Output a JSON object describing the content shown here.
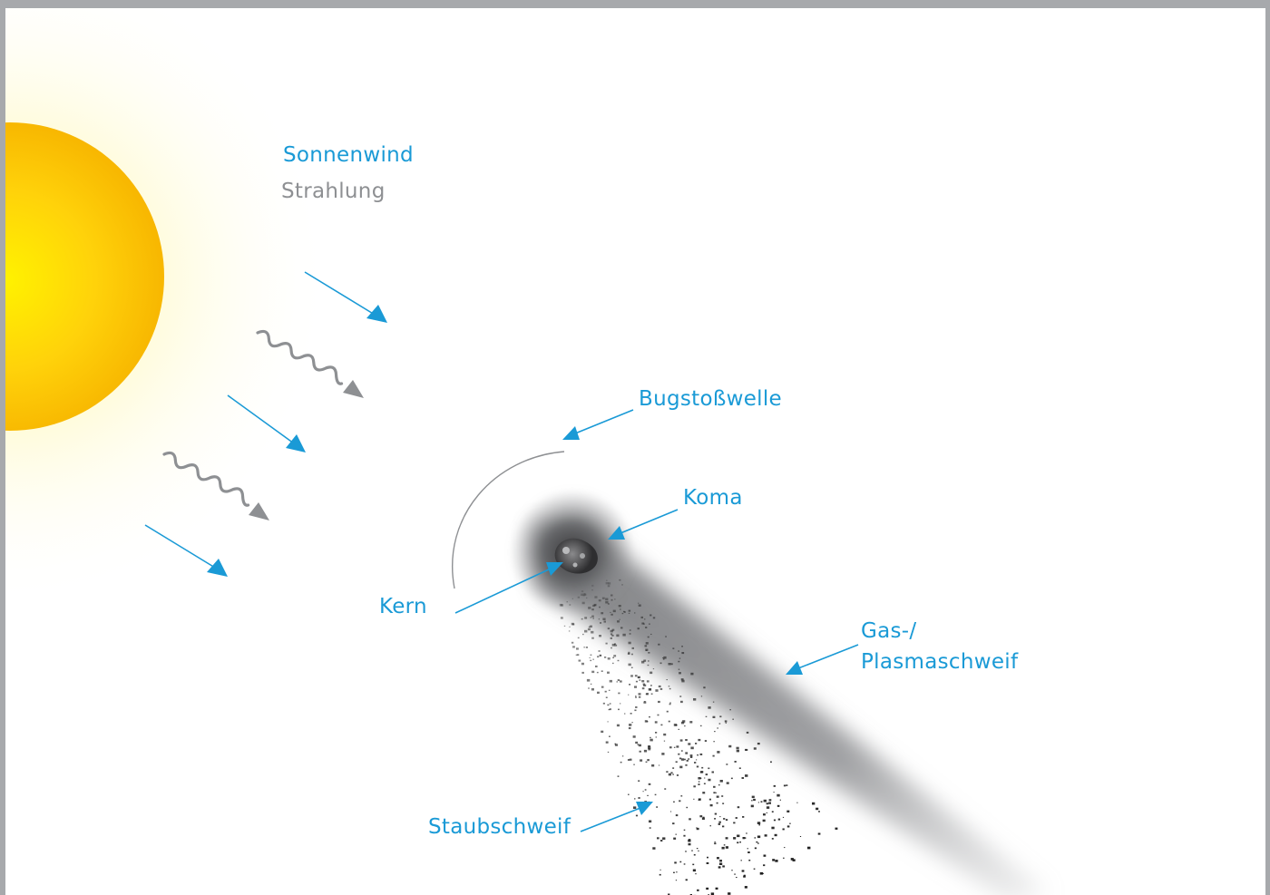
{
  "colors": {
    "accent": "#1a9ad6",
    "radiation": "#8e9093",
    "sun_core": "#fff200",
    "sun_edge": "#f7b500",
    "frame": "#a7a9ac"
  },
  "legend": {
    "solar_wind": "Sonnenwind",
    "radiation": "Strahlung"
  },
  "labels": {
    "bow_shock": "Bugstoßwelle",
    "coma": "Koma",
    "nucleus": "Kern",
    "gas_tail_line1": "Gas-/",
    "gas_tail_line2": "Plasmaschweif",
    "dust_tail": "Staubschweif"
  }
}
